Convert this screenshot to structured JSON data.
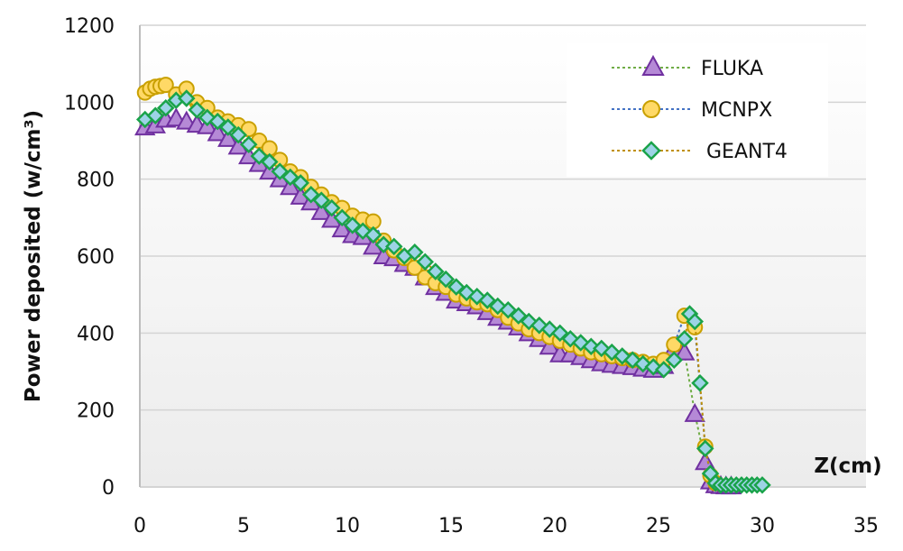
{
  "chart_data": {
    "type": "line",
    "title": "",
    "xlabel": "Z(cm)",
    "ylabel": "Power deposited (w/cm³)",
    "xlim": [
      0,
      35
    ],
    "ylim": [
      0,
      1200
    ],
    "x_ticks": [
      0,
      5,
      10,
      15,
      20,
      25,
      30,
      35
    ],
    "y_ticks": [
      0,
      200,
      400,
      600,
      800,
      1000,
      1200
    ],
    "grid": {
      "horizontal": true,
      "vertical": false
    },
    "legend_position": "upper right",
    "series": [
      {
        "name": "FLUKA",
        "marker": "triangle",
        "marker_fill": "#b589d6",
        "marker_stroke": "#7030a0",
        "line_color": "#70ad47",
        "x": [
          0.25,
          0.75,
          1.25,
          1.75,
          2.25,
          2.75,
          3.25,
          3.75,
          4.25,
          4.75,
          5.25,
          5.75,
          6.25,
          6.75,
          7.25,
          7.75,
          8.25,
          8.75,
          9.25,
          9.75,
          10.25,
          10.75,
          11.25,
          11.75,
          12.25,
          12.75,
          13.25,
          13.75,
          14.25,
          14.75,
          15.25,
          15.75,
          16.25,
          16.75,
          17.25,
          17.75,
          18.25,
          18.75,
          19.25,
          19.75,
          20.25,
          20.75,
          21.25,
          21.75,
          22.25,
          22.75,
          23.25,
          23.75,
          24.25,
          24.75,
          25.25,
          25.75,
          26.25,
          26.75,
          27.25,
          27.5,
          27.75,
          28.0,
          28.25,
          28.5
        ],
        "y": [
          935,
          940,
          955,
          958,
          950,
          942,
          938,
          920,
          905,
          885,
          860,
          840,
          820,
          800,
          780,
          755,
          740,
          715,
          695,
          670,
          655,
          650,
          625,
          600,
          595,
          580,
          570,
          545,
          520,
          505,
          485,
          478,
          470,
          455,
          440,
          430,
          415,
          400,
          385,
          365,
          345,
          345,
          338,
          330,
          322,
          318,
          315,
          312,
          308,
          305,
          315,
          360,
          350,
          190,
          65,
          15,
          5,
          3,
          2,
          2
        ]
      },
      {
        "name": "MCNPX",
        "marker": "circle",
        "marker_fill": "#ffd966",
        "marker_stroke": "#c9a000",
        "line_color": "#4472c4",
        "x": [
          0.25,
          0.5,
          0.75,
          1.0,
          1.25,
          1.75,
          2.25,
          2.75,
          3.25,
          3.75,
          4.25,
          4.75,
          5.25,
          5.75,
          6.25,
          6.75,
          7.25,
          7.75,
          8.25,
          8.75,
          9.25,
          9.75,
          10.25,
          10.75,
          11.25,
          11.75,
          12.25,
          12.75,
          13.25,
          13.75,
          14.25,
          14.75,
          15.25,
          15.75,
          16.25,
          16.75,
          17.25,
          17.75,
          18.25,
          18.75,
          19.25,
          19.75,
          20.25,
          20.75,
          21.25,
          21.75,
          22.25,
          22.75,
          23.25,
          23.75,
          24.25,
          24.75,
          25.25,
          25.75,
          26.25,
          26.75,
          27.25,
          27.5,
          27.75
        ],
        "y": [
          1025,
          1035,
          1040,
          1042,
          1045,
          1020,
          1035,
          1000,
          985,
          960,
          950,
          940,
          930,
          900,
          880,
          850,
          820,
          805,
          780,
          760,
          740,
          725,
          705,
          695,
          690,
          640,
          615,
          595,
          570,
          545,
          530,
          520,
          500,
          490,
          480,
          475,
          460,
          440,
          425,
          410,
          400,
          390,
          380,
          370,
          360,
          350,
          345,
          340,
          335,
          330,
          325,
          320,
          330,
          370,
          445,
          415,
          105,
          30,
          10
        ]
      },
      {
        "name": "GEANT4",
        "marker": "diamond",
        "marker_fill": "#9dd3e6",
        "marker_stroke": "#1aa34a",
        "line_color": "#c09000",
        "x": [
          0.25,
          0.75,
          1.25,
          1.75,
          2.25,
          2.75,
          3.25,
          3.75,
          4.25,
          4.75,
          5.25,
          5.75,
          6.25,
          6.75,
          7.25,
          7.75,
          8.25,
          8.75,
          9.25,
          9.75,
          10.25,
          10.75,
          11.25,
          11.75,
          12.25,
          12.75,
          13.25,
          13.75,
          14.25,
          14.75,
          15.25,
          15.75,
          16.25,
          16.75,
          17.25,
          17.75,
          18.25,
          18.75,
          19.25,
          19.75,
          20.25,
          20.75,
          21.25,
          21.75,
          22.25,
          22.75,
          23.25,
          23.75,
          24.25,
          24.75,
          25.25,
          25.75,
          26.25,
          26.5,
          26.75,
          27.0,
          27.25,
          27.5,
          27.75,
          28.0,
          28.25,
          28.5,
          28.75,
          29.0,
          29.25,
          29.5,
          29.75,
          30.0
        ],
        "y": [
          955,
          965,
          985,
          1005,
          1010,
          980,
          960,
          950,
          935,
          915,
          890,
          860,
          845,
          820,
          805,
          790,
          760,
          745,
          725,
          700,
          680,
          665,
          655,
          630,
          625,
          600,
          610,
          585,
          560,
          540,
          520,
          505,
          495,
          485,
          470,
          460,
          445,
          430,
          420,
          410,
          400,
          385,
          375,
          365,
          360,
          350,
          340,
          330,
          320,
          312,
          305,
          330,
          385,
          450,
          430,
          270,
          100,
          35,
          10,
          5,
          5,
          5,
          5,
          5,
          5,
          5,
          5,
          5
        ]
      }
    ]
  },
  "legend": {
    "items": [
      {
        "label": "FLUKA"
      },
      {
        "label": "MCNPX"
      },
      {
        "label": "GEANT4"
      }
    ]
  }
}
